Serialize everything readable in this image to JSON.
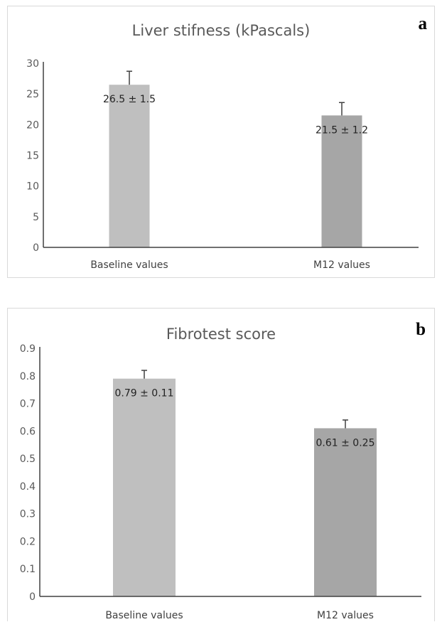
{
  "chart_data": [
    {
      "panel": "a",
      "type": "bar",
      "title": "Liver stifness (kPascals)",
      "categories": [
        "Baseline values",
        "M12 values"
      ],
      "values": [
        26.5,
        21.5
      ],
      "error_plus": [
        2.2,
        2.1
      ],
      "data_labels": [
        "26.5 ± 1.5",
        "21.5 ± 1.2"
      ],
      "bar_colors": [
        "#bfbfbf",
        "#a6a6a6"
      ],
      "ylim": [
        0,
        30
      ],
      "yticks": [
        0,
        5,
        10,
        15,
        20,
        25,
        30
      ],
      "ytick_labels": [
        "0",
        "5",
        "10",
        "15",
        "20",
        "25",
        "30"
      ],
      "grid": false,
      "xlabel": "",
      "ylabel": ""
    },
    {
      "panel": "b",
      "type": "bar",
      "title": "Fibrotest score",
      "categories": [
        "Baseline values",
        "M12 values"
      ],
      "values": [
        0.79,
        0.61
      ],
      "error_plus": [
        0.03,
        0.03
      ],
      "data_labels": [
        "0.79 ± 0.11",
        "0.61 ± 0.25"
      ],
      "bar_colors": [
        "#bfbfbf",
        "#a6a6a6"
      ],
      "ylim": [
        0,
        0.9
      ],
      "yticks": [
        0,
        0.1,
        0.2,
        0.3,
        0.4,
        0.5,
        0.6,
        0.7,
        0.8,
        0.9
      ],
      "ytick_labels": [
        "0",
        "0.1",
        "0.2",
        "0.3",
        "0.4",
        "0.5",
        "0.6",
        "0.7",
        "0.8",
        "0.9"
      ],
      "grid": false,
      "xlabel": "",
      "ylabel": ""
    }
  ],
  "panels": {
    "a": {
      "letter": "a"
    },
    "b": {
      "letter": "b"
    }
  }
}
